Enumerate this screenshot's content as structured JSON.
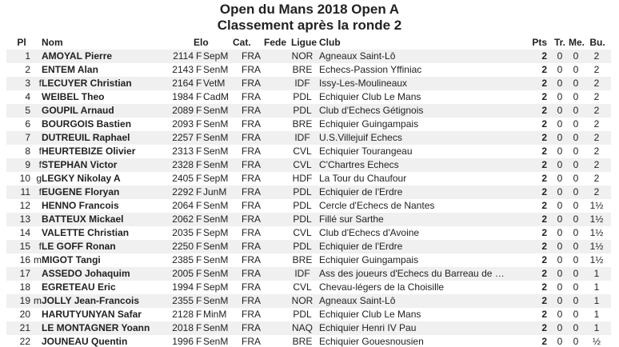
{
  "title": [
    "Open du Mans 2018 Open A",
    "Classement après la ronde 2"
  ],
  "table": {
    "header": {
      "pl": "Pl",
      "name": "Nom",
      "elo": "Elo",
      "cat": "Cat.",
      "fede": "Fede",
      "ligue": "Ligue",
      "club": "Club",
      "pts": "Pts",
      "tr": "Tr.",
      "me": "Me.",
      "bu": "Bu."
    },
    "rows": [
      {
        "pl": "1",
        "name": "AMOYAL Pierre",
        "elo": "2114",
        "fide": "F",
        "cat": "SepM",
        "fede": "FRA",
        "ligue": "NOR",
        "club": "Agneaux Saint-Lô",
        "pts": "2",
        "tr": "0",
        "me": "0",
        "bu": "2"
      },
      {
        "pl": "2",
        "name": "ENTEM Alan",
        "elo": "2143",
        "fide": "F",
        "cat": "SenM",
        "fede": "FRA",
        "ligue": "BRE",
        "club": "Echecs-Passion Yffiniac",
        "pts": "2",
        "tr": "0",
        "me": "0",
        "bu": "2"
      },
      {
        "pl": "3",
        "title": "f",
        "name": "LECUYER Christian",
        "elo": "2164",
        "fide": "F",
        "cat": "VetM",
        "fede": "FRA",
        "ligue": "IDF",
        "club": "Issy-Les-Moulineaux",
        "pts": "2",
        "tr": "0",
        "me": "0",
        "bu": "2"
      },
      {
        "pl": "4",
        "name": "WEIBEL Theo",
        "elo": "1984",
        "fide": "F",
        "cat": "CadM",
        "fede": "FRA",
        "ligue": "PDL",
        "club": "Echiquier Club Le Mans",
        "pts": "2",
        "tr": "0",
        "me": "0",
        "bu": "2"
      },
      {
        "pl": "5",
        "name": "GOUPIL Arnaud",
        "elo": "2089",
        "fide": "F",
        "cat": "SenM",
        "fede": "FRA",
        "ligue": "PDL",
        "club": "Club d'Echecs Gétignois",
        "pts": "2",
        "tr": "0",
        "me": "0",
        "bu": "2"
      },
      {
        "pl": "6",
        "name": "BOURGOIS Bastien",
        "elo": "2093",
        "fide": "F",
        "cat": "SenM",
        "fede": "FRA",
        "ligue": "BRE",
        "club": "Echiquier Guingampais",
        "pts": "2",
        "tr": "0",
        "me": "0",
        "bu": "2"
      },
      {
        "pl": "7",
        "name": "DUTREUIL Raphael",
        "elo": "2257",
        "fide": "F",
        "cat": "SenM",
        "fede": "FRA",
        "ligue": "IDF",
        "club": "U.S.Villejuif Echecs",
        "pts": "2",
        "tr": "0",
        "me": "0",
        "bu": "2"
      },
      {
        "pl": "8",
        "title": "f",
        "name": "HEURTEBIZE Olivier",
        "elo": "2313",
        "fide": "F",
        "cat": "SenM",
        "fede": "FRA",
        "ligue": "CVL",
        "club": "Echiquier Tourangeau",
        "pts": "2",
        "tr": "0",
        "me": "0",
        "bu": "2"
      },
      {
        "pl": "9",
        "title": "f",
        "name": "STEPHAN Victor",
        "elo": "2328",
        "fide": "F",
        "cat": "SenM",
        "fede": "FRA",
        "ligue": "CVL",
        "club": "C'Chartres Echecs",
        "pts": "2",
        "tr": "0",
        "me": "0",
        "bu": "2"
      },
      {
        "pl": "10",
        "title": "g",
        "name": "LEGKY Nikolay A",
        "elo": "2405",
        "fide": "F",
        "cat": "SepM",
        "fede": "FRA",
        "ligue": "HDF",
        "club": "La Tour du Chaufour",
        "pts": "2",
        "tr": "0",
        "me": "0",
        "bu": "2"
      },
      {
        "pl": "11",
        "title": "f",
        "name": "EUGENE Floryan",
        "elo": "2292",
        "fide": "F",
        "cat": "JunM",
        "fede": "FRA",
        "ligue": "PDL",
        "club": "Echiquier de l'Erdre",
        "pts": "2",
        "tr": "0",
        "me": "0",
        "bu": "2"
      },
      {
        "pl": "12",
        "name": "HENNO Francois",
        "elo": "2064",
        "fide": "F",
        "cat": "SenM",
        "fede": "FRA",
        "ligue": "PDL",
        "club": "Cercle d'Echecs de Nantes",
        "pts": "2",
        "tr": "0",
        "me": "0",
        "bu": "1½"
      },
      {
        "pl": "13",
        "name": "BATTEUX Mickael",
        "elo": "2062",
        "fide": "F",
        "cat": "SenM",
        "fede": "FRA",
        "ligue": "PDL",
        "club": "Fillé sur Sarthe",
        "pts": "2",
        "tr": "0",
        "me": "0",
        "bu": "1½"
      },
      {
        "pl": "14",
        "name": "VALETTE Christian",
        "elo": "2035",
        "fide": "F",
        "cat": "SepM",
        "fede": "FRA",
        "ligue": "CVL",
        "club": "Club d'Echecs d'Avoine",
        "pts": "2",
        "tr": "0",
        "me": "0",
        "bu": "1½"
      },
      {
        "pl": "15",
        "title": "f",
        "name": "LE GOFF Ronan",
        "elo": "2250",
        "fide": "F",
        "cat": "SenM",
        "fede": "FRA",
        "ligue": "PDL",
        "club": "Echiquier de l'Erdre",
        "pts": "2",
        "tr": "0",
        "me": "0",
        "bu": "1½"
      },
      {
        "pl": "16",
        "title": "m",
        "name": "MIGOT Tangi",
        "elo": "2385",
        "fide": "F",
        "cat": "SenM",
        "fede": "FRA",
        "ligue": "BRE",
        "club": "Echiquier Guingampais",
        "pts": "2",
        "tr": "0",
        "me": "0",
        "bu": "1½"
      },
      {
        "pl": "17",
        "name": "ASSEDO Johaquim",
        "elo": "2005",
        "fide": "F",
        "cat": "SenM",
        "fede": "FRA",
        "ligue": "IDF",
        "club": "Ass des joueurs d'Echecs du Barreau de …",
        "pts": "2",
        "tr": "0",
        "me": "0",
        "bu": "1"
      },
      {
        "pl": "18",
        "name": "EGRETEAU Eric",
        "elo": "1994",
        "fide": "F",
        "cat": "SepM",
        "fede": "FRA",
        "ligue": "CVL",
        "club": "Chevau-légers de la Choisille",
        "pts": "2",
        "tr": "0",
        "me": "0",
        "bu": "1"
      },
      {
        "pl": "19",
        "title": "m",
        "name": "JOLLY Jean-Francois",
        "elo": "2355",
        "fide": "F",
        "cat": "SenM",
        "fede": "FRA",
        "ligue": "NOR",
        "club": "Agneaux Saint-Lô",
        "pts": "2",
        "tr": "0",
        "me": "0",
        "bu": "1"
      },
      {
        "pl": "20",
        "name": "HARUTYUNYAN Safar",
        "elo": "2128",
        "fide": "F",
        "cat": "MinM",
        "fede": "FRA",
        "ligue": "PDL",
        "club": "Echiquier Club Le Mans",
        "pts": "2",
        "tr": "0",
        "me": "0",
        "bu": "1"
      },
      {
        "pl": "21",
        "name": "LE MONTAGNER Yoann",
        "elo": "2018",
        "fide": "F",
        "cat": "SenM",
        "fede": "FRA",
        "ligue": "NAQ",
        "club": "Echiquier Henri IV Pau",
        "pts": "2",
        "tr": "0",
        "me": "0",
        "bu": "1"
      },
      {
        "pl": "22",
        "name": "JOUNEAU Quentin",
        "elo": "1996",
        "fide": "F",
        "cat": "SenM",
        "fede": "FRA",
        "ligue": "BRE",
        "club": "Echiquier Gouesnousien",
        "pts": "2",
        "tr": "0",
        "me": "0",
        "bu": "½"
      }
    ]
  }
}
